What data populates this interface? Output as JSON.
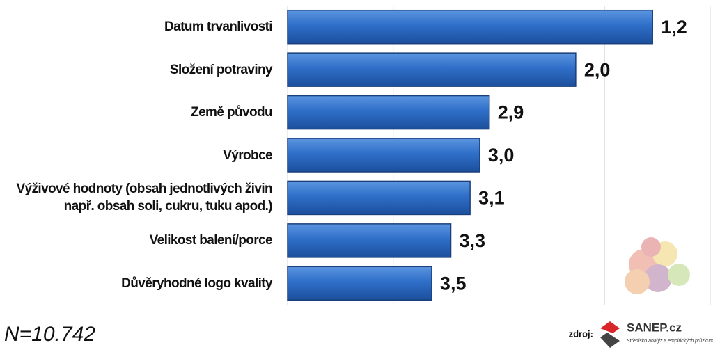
{
  "chart_data": {
    "type": "bar",
    "orientation": "horizontal",
    "categories": [
      "Datum trvanlivosti",
      "Složení potraviny",
      "Země původu",
      "Výrobce",
      "Výživové hodnoty (obsah jednotlivých živin např. obsah soli, cukru, tuku apod.)",
      "Velikost balení/porce",
      "Důvěryhodné logo kvality"
    ],
    "values": [
      1.2,
      2.0,
      2.9,
      3.0,
      3.1,
      3.3,
      3.5
    ],
    "value_labels": [
      "1,2",
      "2,0",
      "2,9",
      "3,0",
      "3,1",
      "3,3",
      "3,5"
    ],
    "color": "#2f6fc9",
    "xlim": [
      5,
      0.6
    ],
    "grid": true
  },
  "footer": {
    "sample": "N=10.742",
    "source_label": "zdroj:",
    "source_name": "SANEP.cz",
    "source_tagline": "Středisko analýz a empirických průzkumů"
  }
}
